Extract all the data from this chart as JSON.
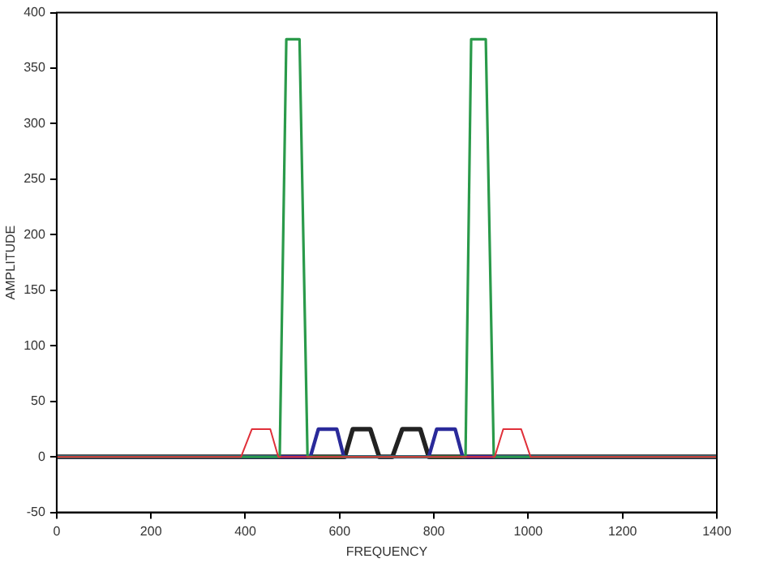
{
  "chart_data": {
    "type": "line",
    "xlabel": "FREQUENCY",
    "ylabel": "AMPLITUDE",
    "xlim": [
      0,
      1400
    ],
    "xticks": [
      0,
      200,
      400,
      600,
      800,
      1000,
      1200,
      1400
    ],
    "ylim": [
      -50,
      400
    ],
    "yticks": [
      -50,
      0,
      50,
      100,
      150,
      200,
      250,
      300,
      350,
      400
    ],
    "grid": false,
    "legend": false,
    "marker": "none",
    "line_style": "solid",
    "series": [
      {
        "color": "#e0303a",
        "x": [
          0,
          391,
          414,
          453,
          470,
          929,
          947,
          985,
          1005,
          1400
        ],
        "values": [
          0,
          0,
          25,
          25,
          0,
          0,
          25,
          25,
          0,
          0
        ]
      },
      {
        "color": "#2a9a4a",
        "x": [
          0,
          473,
          487,
          515,
          532,
          867,
          879,
          910,
          927,
          1400
        ],
        "values": [
          0,
          0,
          376,
          376,
          0,
          0,
          376,
          376,
          0,
          0
        ]
      },
      {
        "color": "#2a2a9a",
        "x": [
          0,
          538,
          555,
          594,
          609,
          789,
          806,
          845,
          861,
          1400
        ],
        "values": [
          0,
          0,
          25,
          25,
          0,
          0,
          25,
          25,
          0,
          0
        ]
      },
      {
        "color": "#222222",
        "x": [
          0,
          611,
          628,
          665,
          684,
          712,
          733,
          771,
          789,
          1400
        ],
        "values": [
          0,
          0,
          25,
          25,
          0,
          0,
          25,
          25,
          0,
          0
        ]
      }
    ]
  }
}
